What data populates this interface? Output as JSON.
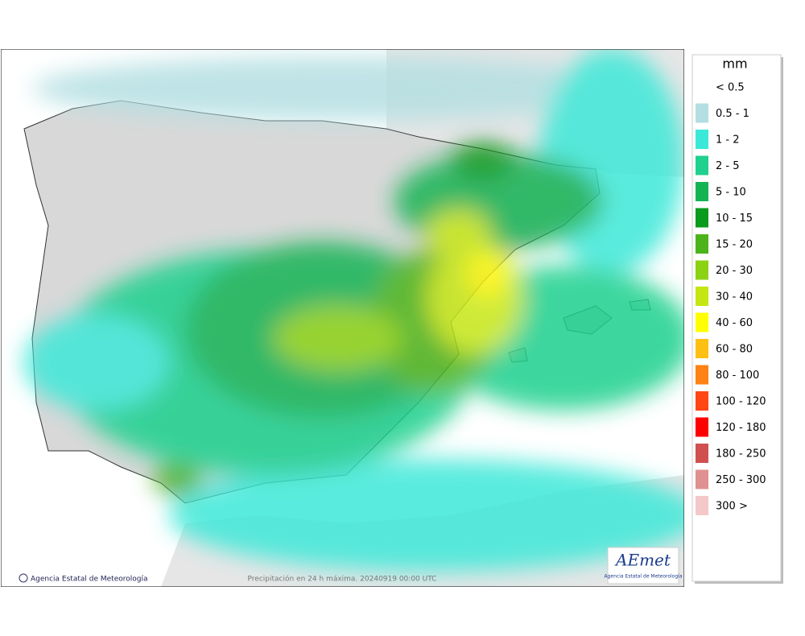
{
  "map": {
    "credit": "Agencia Estatal de Meteorología",
    "caption": "Precipitación en 24 h máxima. 20240919 00:00 UTC",
    "logo": {
      "name": "AEmet",
      "subtitle": "Agencia Estatal de Meteorología"
    }
  },
  "legend": {
    "unit": "mm",
    "items": [
      {
        "label": "< 0.5",
        "color": "#ffffff"
      },
      {
        "label": "0.5 - 1",
        "color": "#b4dfe2"
      },
      {
        "label": "1 - 2",
        "color": "#3ce8d8"
      },
      {
        "label": "2 - 5",
        "color": "#1fd08e"
      },
      {
        "label": "5 - 10",
        "color": "#14b454"
      },
      {
        "label": "10 - 15",
        "color": "#0a9a1c"
      },
      {
        "label": "15 - 20",
        "color": "#4cb41a"
      },
      {
        "label": "20 - 30",
        "color": "#8cd214"
      },
      {
        "label": "30 - 40",
        "color": "#c6e614"
      },
      {
        "label": "40 - 60",
        "color": "#ffff00"
      },
      {
        "label": "60 - 80",
        "color": "#ffc014"
      },
      {
        "label": "80 - 100",
        "color": "#ff8214"
      },
      {
        "label": "100 - 120",
        "color": "#ff4614"
      },
      {
        "label": "120 - 180",
        "color": "#ff0000"
      },
      {
        "label": "180 - 250",
        "color": "#d05050"
      },
      {
        "label": "250 - 300",
        "color": "#e09090"
      },
      {
        "label": "300 >",
        "color": "#f4c8c8"
      }
    ]
  }
}
